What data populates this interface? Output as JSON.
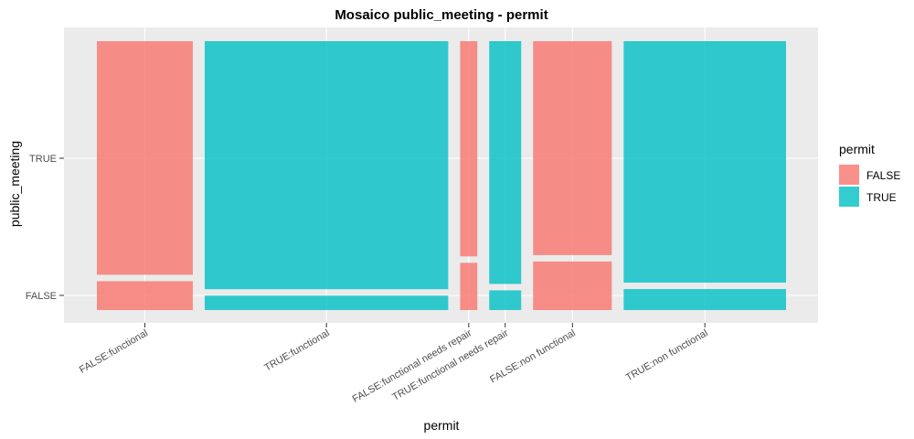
{
  "chart_data": {
    "type": "mosaic",
    "title": "Mosaico public_meeting - permit",
    "xlabel": "permit",
    "ylabel": "public_meeting",
    "y_categories": [
      "FALSE",
      "TRUE"
    ],
    "x_categories": [
      "FALSE:functional",
      "TRUE:functional",
      "FALSE:functional needs repair",
      "TRUE:functional needs repair",
      "FALSE:non functional",
      "TRUE:non functional"
    ],
    "column_widths": [
      0.195,
      0.495,
      0.035,
      0.065,
      0.16,
      0.33
    ],
    "public_meeting_false_share": [
      0.11,
      0.055,
      0.18,
      0.075,
      0.185,
      0.08
    ],
    "fill_permit": [
      "FALSE",
      "TRUE",
      "FALSE",
      "TRUE",
      "FALSE",
      "TRUE"
    ],
    "legend": {
      "title": "permit",
      "entries": [
        {
          "label": "FALSE",
          "color": "#F8766D"
        },
        {
          "label": "TRUE",
          "color": "#00BFC4"
        }
      ]
    },
    "grid": true
  }
}
